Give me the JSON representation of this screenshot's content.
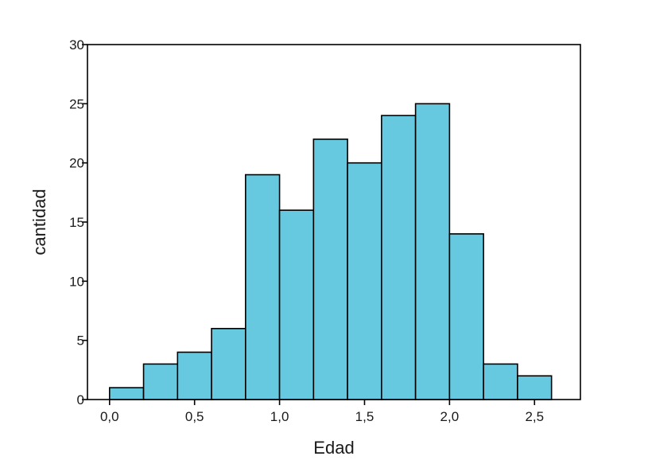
{
  "chart_data": {
    "type": "bar",
    "title": "",
    "xlabel": "Edad",
    "ylabel": "cantidad",
    "bins": [
      {
        "x0": 0.0,
        "x1": 0.2,
        "count": 1
      },
      {
        "x0": 0.2,
        "x1": 0.4,
        "count": 3
      },
      {
        "x0": 0.4,
        "x1": 0.6,
        "count": 4
      },
      {
        "x0": 0.6,
        "x1": 0.8,
        "count": 6
      },
      {
        "x0": 0.8,
        "x1": 1.0,
        "count": 19
      },
      {
        "x0": 1.0,
        "x1": 1.2,
        "count": 16
      },
      {
        "x0": 1.2,
        "x1": 1.4,
        "count": 22
      },
      {
        "x0": 1.4,
        "x1": 1.6,
        "count": 20
      },
      {
        "x0": 1.6,
        "x1": 1.8,
        "count": 24
      },
      {
        "x0": 1.8,
        "x1": 2.0,
        "count": 25
      },
      {
        "x0": 2.0,
        "x1": 2.2,
        "count": 14
      },
      {
        "x0": 2.2,
        "x1": 2.4,
        "count": 3
      },
      {
        "x0": 2.4,
        "x1": 2.6,
        "count": 2
      }
    ],
    "xlim": [
      -0.13,
      2.77
    ],
    "ylim": [
      0,
      30
    ],
    "xticks": [
      0.0,
      0.5,
      1.0,
      1.5,
      2.0,
      2.5
    ],
    "xtick_labels": [
      "0,0",
      "0,5",
      "1,0",
      "1,5",
      "2,0",
      "2,5"
    ],
    "yticks": [
      0,
      5,
      10,
      15,
      20,
      25,
      30
    ],
    "ytick_labels": [
      "0",
      "5",
      "10",
      "15",
      "20",
      "25",
      "30"
    ],
    "grid": false,
    "colors": {
      "bar_fill": "#66c9df",
      "bar_edge": "#000000",
      "axis": "#000000"
    }
  }
}
